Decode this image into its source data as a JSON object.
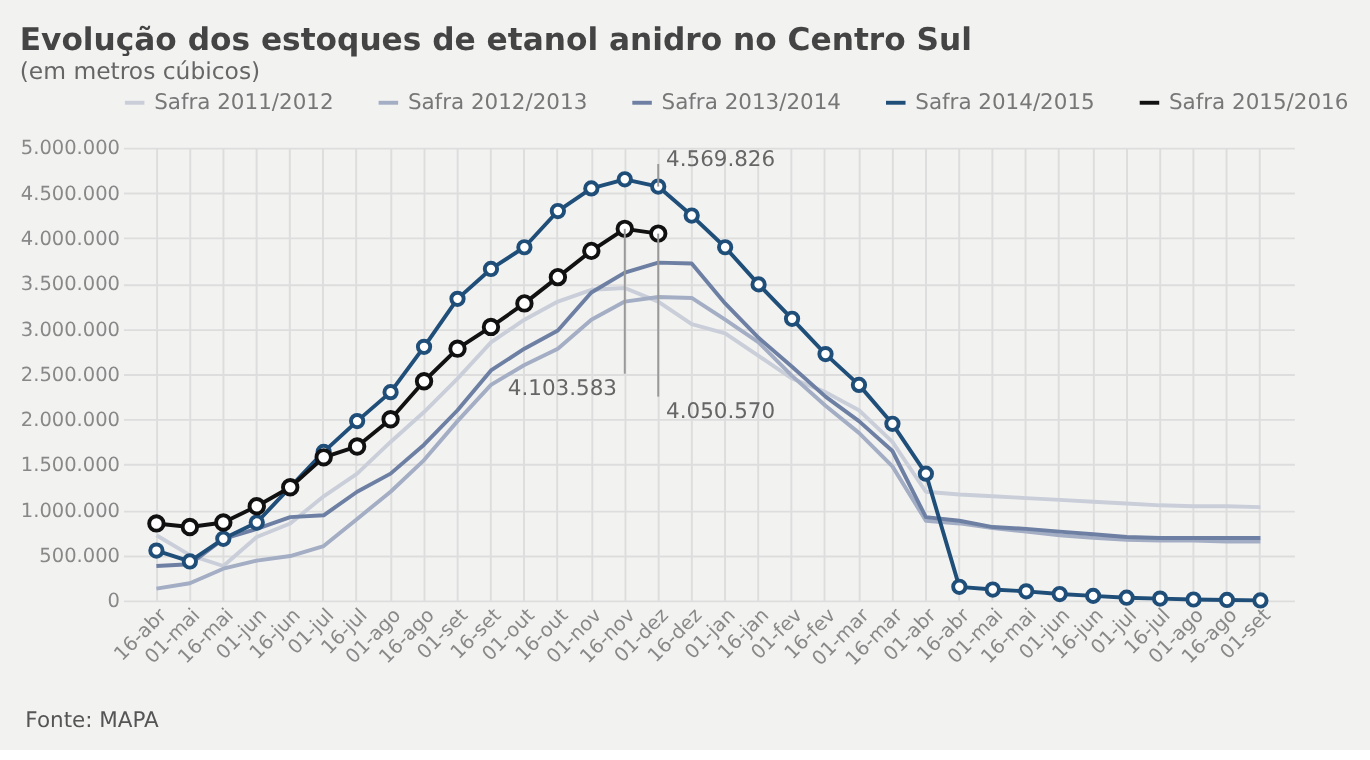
{
  "chart_data": {
    "type": "line",
    "title": "Evolução dos estoques de etanol anidro no Centro Sul",
    "subtitle": "(em metros cúbicos)",
    "categories": [
      "16-abr",
      "01-mai",
      "16-mai",
      "01-jun",
      "16-jun",
      "01-jul",
      "16-jul",
      "01-ago",
      "16-ago",
      "01-set",
      "16-set",
      "01-out",
      "16-out",
      "01-nov",
      "16-nov",
      "01-dez",
      "16-dez",
      "01-jan",
      "16-jan",
      "01-fev",
      "16-fev",
      "01-mar",
      "16-mar",
      "01-abr",
      "16-abr",
      "01-mai",
      "16-mai",
      "01-jun",
      "16-jun",
      "01-jul",
      "16-jul",
      "01-ago",
      "16-ago",
      "01-set"
    ],
    "series": [
      {
        "name": "Safra 2011/2012",
        "color": "#c9ced9",
        "marker": "none",
        "values": [
          720000,
          500000,
          380000,
          700000,
          850000,
          1150000,
          1400000,
          1750000,
          2080000,
          2450000,
          2850000,
          3100000,
          3300000,
          3430000,
          3450000,
          3300000,
          3050000,
          2950000,
          2700000,
          2450000,
          2300000,
          2100000,
          1750000,
          1200000,
          1170000,
          1150000,
          1130000,
          1110000,
          1090000,
          1070000,
          1050000,
          1040000,
          1040000,
          1030000
        ]
      },
      {
        "name": "Safra 2012/2013",
        "color": "#a3adc4",
        "marker": "none",
        "values": [
          130000,
          190000,
          350000,
          440000,
          490000,
          600000,
          900000,
          1200000,
          1550000,
          1980000,
          2380000,
          2600000,
          2780000,
          3100000,
          3300000,
          3350000,
          3340000,
          3100000,
          2850000,
          2480000,
          2150000,
          1850000,
          1480000,
          880000,
          850000,
          800000,
          760000,
          720000,
          690000,
          670000,
          660000,
          660000,
          650000,
          650000
        ]
      },
      {
        "name": "Safra 2013/2014",
        "color": "#6d7fa3",
        "marker": "none",
        "values": [
          380000,
          400000,
          680000,
          790000,
          920000,
          940000,
          1200000,
          1400000,
          1720000,
          2100000,
          2540000,
          2780000,
          2980000,
          3400000,
          3620000,
          3730000,
          3720000,
          3280000,
          2900000,
          2580000,
          2250000,
          1980000,
          1650000,
          920000,
          880000,
          810000,
          790000,
          760000,
          730000,
          700000,
          690000,
          690000,
          690000,
          690000
        ]
      },
      {
        "name": "Safra 2014/2015",
        "color": "#1f4e79",
        "marker": "circle",
        "values": [
          550000,
          430000,
          680000,
          860000,
          1250000,
          1640000,
          1980000,
          2300000,
          2800000,
          3330000,
          3660000,
          3900000,
          4300000,
          4550000,
          4650000,
          4569826,
          4250000,
          3900000,
          3490000,
          3110000,
          2720000,
          2380000,
          1950000,
          1400000,
          150000,
          120000,
          100000,
          70000,
          50000,
          30000,
          20000,
          10000,
          5000,
          0
        ]
      },
      {
        "name": "Safra 2015/2016",
        "color": "#111111",
        "marker": "circle",
        "values": [
          850000,
          810000,
          860000,
          1040000,
          1250000,
          1580000,
          1700000,
          2000000,
          2420000,
          2780000,
          3020000,
          3280000,
          3570000,
          3860000,
          4103583,
          4050570,
          null,
          null,
          null,
          null,
          null,
          null,
          null,
          null,
          null,
          null,
          null,
          null,
          null,
          null,
          null,
          null,
          null,
          null
        ]
      }
    ],
    "ylim": [
      0,
      5000000
    ],
    "yticks": [
      {
        "value": 0,
        "label": "0"
      },
      {
        "value": 500000,
        "label": "500.000"
      },
      {
        "value": 1000000,
        "label": "1.000.000"
      },
      {
        "value": 1500000,
        "label": "1.500.000"
      },
      {
        "value": 2000000,
        "label": "2.000.000"
      },
      {
        "value": 2500000,
        "label": "2.500.000"
      },
      {
        "value": 3000000,
        "label": "3.000.000"
      },
      {
        "value": 3500000,
        "label": "3.500.000"
      },
      {
        "value": 4000000,
        "label": "4.000.000"
      },
      {
        "value": 4500000,
        "label": "4.500.000"
      },
      {
        "value": 5000000,
        "label": "5.000.000"
      }
    ],
    "grid": true,
    "legend": "top",
    "annotations": [
      {
        "text": "4.569.826",
        "x": "01-dez",
        "y": 4569826
      },
      {
        "text": "4.103.583",
        "x": "16-nov",
        "y": 4103583
      },
      {
        "text": "4.050.570",
        "x": "01-dez",
        "y": 4050570
      },
      "Fonte: MAPA"
    ]
  }
}
